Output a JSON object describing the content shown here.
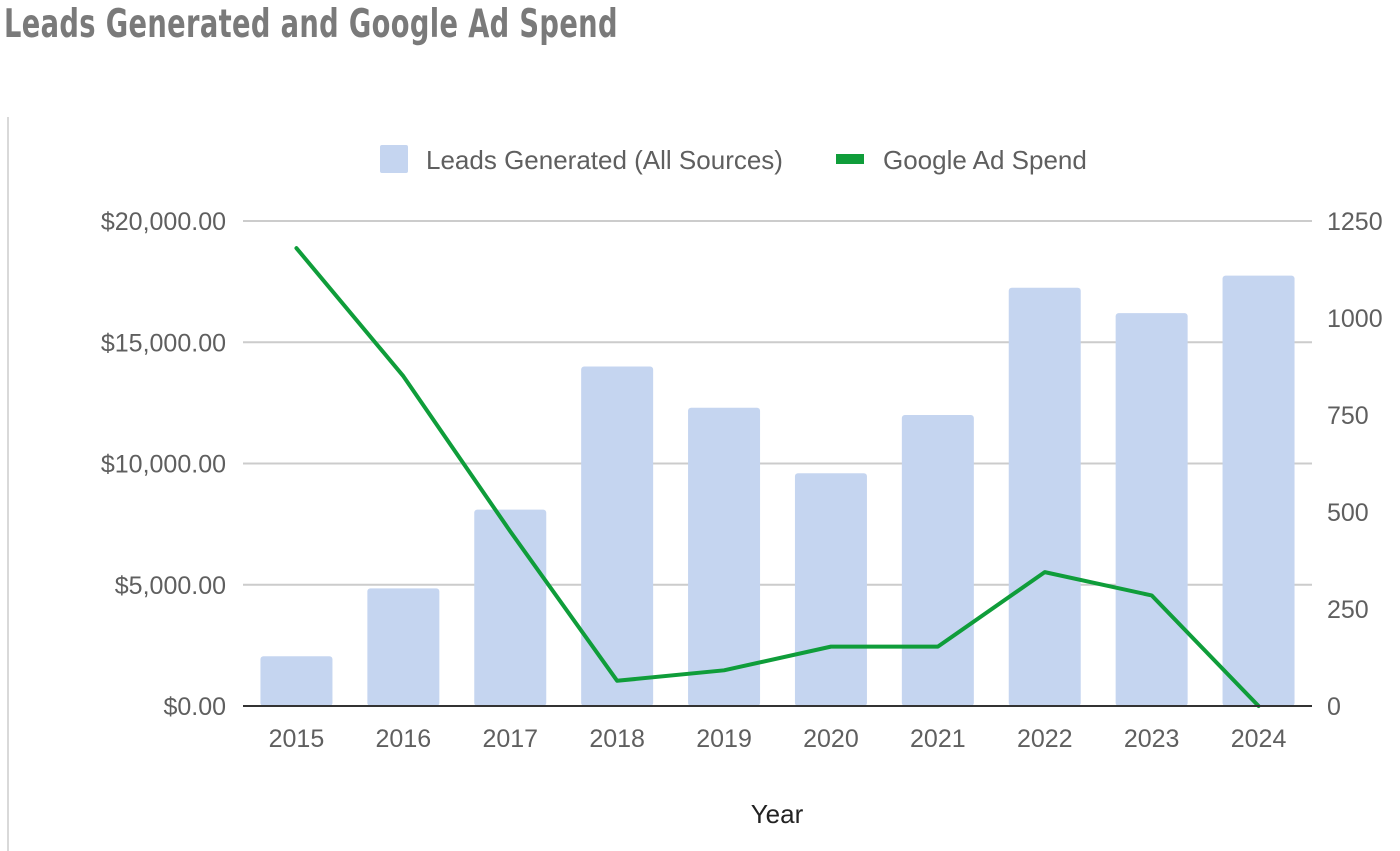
{
  "chart_data": {
    "type": "bar",
    "title": "Leads Generated and Google Ad Spend",
    "xlabel": "Year",
    "categories": [
      "2015",
      "2016",
      "2017",
      "2018",
      "2019",
      "2020",
      "2021",
      "2022",
      "2023",
      "2024"
    ],
    "series": [
      {
        "name": "Leads Generated (All Sources)",
        "type": "bar",
        "axis": "left",
        "color": "#c5d5f0",
        "values": [
          2050,
          4850,
          8100,
          14000,
          12300,
          9600,
          12000,
          17250,
          16200,
          17750
        ]
      },
      {
        "name": "Google Ad Spend",
        "type": "line",
        "axis": "right",
        "color": "#0f9d3a",
        "values": [
          1180,
          850,
          450,
          65,
          92,
          153,
          153,
          345,
          285,
          0
        ]
      }
    ],
    "y_left": {
      "ylim": [
        0,
        20000
      ],
      "ticks": [
        0,
        5000,
        10000,
        15000,
        20000
      ],
      "tick_labels": [
        "$0.00",
        "$5,000.00",
        "$10,000.00",
        "$15,000.00",
        "$20,000.00"
      ]
    },
    "y_right": {
      "ylim": [
        0,
        1250
      ],
      "ticks": [
        0,
        250,
        500,
        750,
        1000,
        1250
      ],
      "tick_labels": [
        "0",
        "250",
        "500",
        "750",
        "1000",
        "1250"
      ]
    },
    "grid": true,
    "legend_position": "top-center"
  }
}
